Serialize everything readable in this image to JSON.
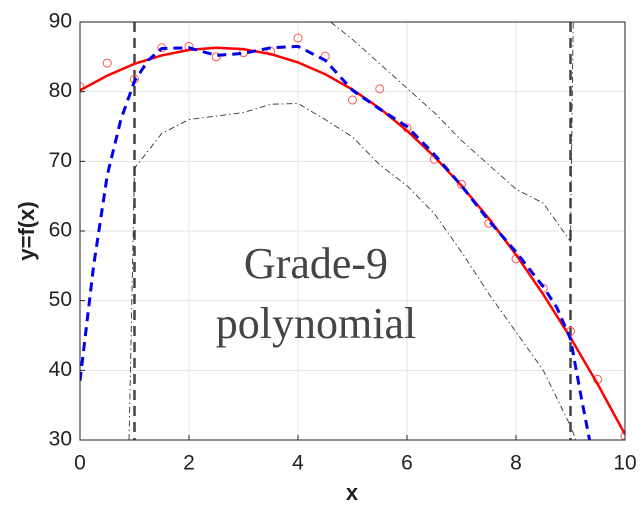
{
  "chart_data": {
    "type": "line",
    "xlabel": "x",
    "ylabel": "y=f(x)",
    "annotation": [
      "Grade-9",
      "polynomial"
    ],
    "xlim": [
      0,
      10
    ],
    "ylim": [
      30,
      90
    ],
    "xticks": [
      0,
      2,
      4,
      6,
      8,
      10
    ],
    "yticks": [
      30,
      40,
      50,
      60,
      70,
      80,
      90
    ],
    "grid": true,
    "vlines": [
      1,
      9
    ],
    "vline_color": "#444444",
    "series": [
      {
        "style": "scatter",
        "color": "#ff5555",
        "x": [
          0,
          0.5,
          1,
          1.5,
          2,
          2.5,
          3,
          3.5,
          4,
          4.5,
          5,
          5.5,
          6,
          6.5,
          7,
          7.5,
          8,
          8.5,
          9,
          9.5,
          10
        ],
        "values": [
          80.7,
          84.1,
          81.8,
          86.3,
          86.5,
          85.0,
          85.6,
          85.8,
          87.7,
          85.1,
          78.8,
          80.4,
          74.8,
          70.3,
          66.7,
          61.1,
          56.0,
          51.8,
          45.6,
          38.7,
          30.6
        ]
      },
      {
        "style": "solid",
        "color": "#ff0000",
        "x": [
          0,
          0.5,
          1,
          1.5,
          2,
          2.5,
          3,
          3.5,
          4,
          4.5,
          5,
          5.5,
          6,
          6.5,
          7,
          7.5,
          8,
          8.5,
          9,
          9.5,
          10
        ],
        "values": [
          80.2,
          82.3,
          84.0,
          85.2,
          86.0,
          86.3,
          86.1,
          85.4,
          84.2,
          82.5,
          80.3,
          77.6,
          74.4,
          70.7,
          66.5,
          61.8,
          56.6,
          50.9,
          44.7,
          38.0,
          30.8
        ]
      },
      {
        "style": "dashed",
        "color": "#0000ee",
        "x": [
          0,
          0.25,
          0.5,
          0.75,
          1,
          1.25,
          1.5,
          2,
          2.5,
          3,
          3.5,
          4,
          4.5,
          5,
          5.5,
          6,
          6.5,
          7,
          7.5,
          8,
          8.5,
          8.75,
          9,
          9.2,
          9.35
        ],
        "values": [
          38.5,
          55,
          68,
          76,
          81.5,
          84.5,
          86.2,
          86.3,
          85.2,
          85.5,
          86.3,
          86.5,
          84.5,
          80.2,
          77.5,
          75,
          71,
          66.5,
          61.5,
          57,
          52,
          49,
          44.5,
          36,
          30
        ]
      },
      {
        "style": "dashdot",
        "color": "#333333",
        "x": [
          4.6,
          5,
          5.5,
          6,
          6.5,
          7,
          7.5,
          8,
          8.5,
          9,
          9.05
        ],
        "values": [
          90,
          87.5,
          84,
          80.5,
          77,
          73,
          69.5,
          66,
          64,
          58.5,
          90
        ]
      },
      {
        "style": "dashdot",
        "color": "#333333",
        "x": [
          0.9,
          1,
          1.5,
          2,
          3,
          3.5,
          4,
          4.5,
          5,
          5.5,
          6,
          6.5,
          7,
          7.5,
          8,
          8.5,
          9,
          9.1
        ],
        "values": [
          30,
          69,
          74,
          76,
          77,
          78.2,
          78.3,
          76,
          73.5,
          69.5,
          66.5,
          62.5,
          57,
          51,
          45.5,
          40,
          32,
          30
        ]
      }
    ]
  }
}
